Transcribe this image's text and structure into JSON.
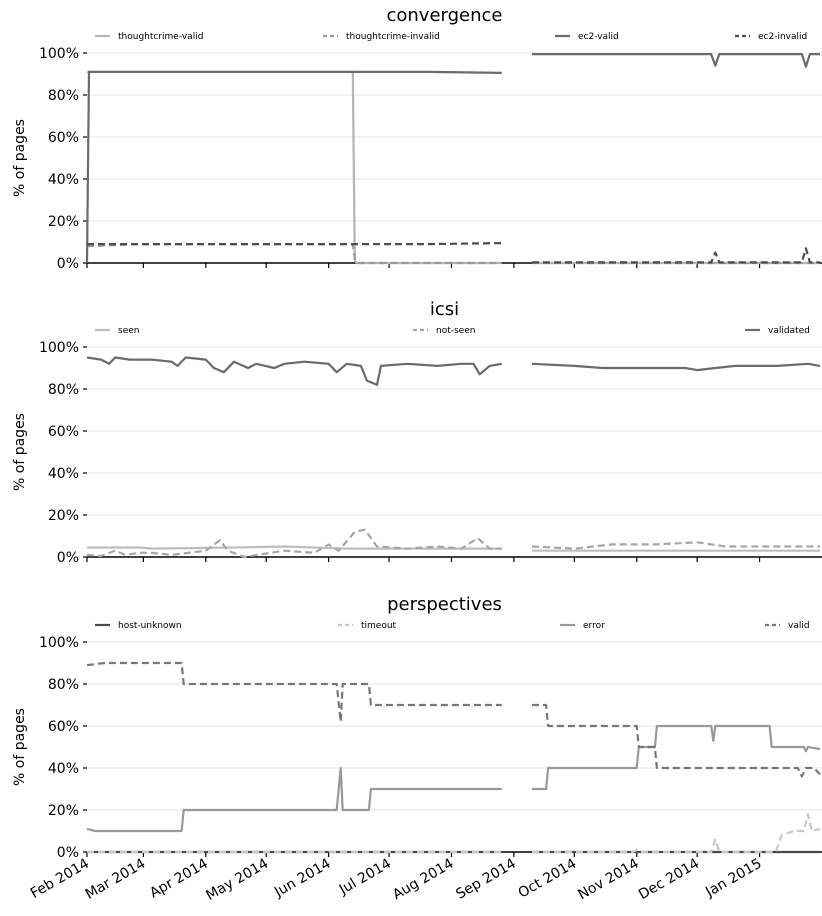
{
  "chart_data": [
    {
      "type": "line",
      "title": "convergence",
      "xlabel": "",
      "ylabel": "% of pages",
      "ylim": [
        0,
        100
      ],
      "y_ticks": [
        "0%",
        "20%",
        "40%",
        "60%",
        "80%",
        "100%"
      ],
      "grid": "horizontal",
      "legend_position": "top",
      "series": [
        {
          "name": "thoughtcrime-valid",
          "color": "#b4b4b4",
          "dash": "solid",
          "points": [
            [
              "2014-02-01",
              91
            ],
            [
              "2014-02-27",
              91
            ],
            [
              "2014-03-05",
              91
            ],
            [
              "2014-04-15",
              91
            ],
            [
              "2014-05-20",
              91
            ],
            [
              "2014-06-13",
              91
            ],
            [
              "2014-06-14",
              1
            ],
            [
              "2014-06-15",
              0
            ],
            [
              "2014-07-20",
              0
            ],
            [
              "2014-08-26",
              0
            ],
            [
              "2014-09-10",
              0
            ],
            [
              "2014-10-30",
              0
            ],
            [
              "2014-12-05",
              0
            ],
            [
              "2015-01-31",
              0
            ]
          ]
        },
        {
          "name": "thoughtcrime-invalid",
          "color": "#9a9a9a",
          "dash": "dashed",
          "points": [
            [
              "2014-02-01",
              8
            ],
            [
              "2014-02-27",
              9
            ],
            [
              "2014-03-05",
              9
            ],
            [
              "2014-04-15",
              9
            ],
            [
              "2014-06-13",
              9
            ],
            [
              "2014-06-14",
              2
            ],
            [
              "2014-06-15",
              0
            ],
            [
              "2014-07-20",
              0
            ],
            [
              "2014-08-26",
              0
            ],
            [
              "2014-09-10",
              0
            ],
            [
              "2014-12-05",
              0
            ],
            [
              "2015-01-31",
              0
            ]
          ]
        },
        {
          "name": "ec2-valid",
          "color": "#6b6b6b",
          "dash": "solid",
          "points": [
            [
              "2014-02-01",
              0
            ],
            [
              "2014-02-02",
              91
            ],
            [
              "2014-02-27",
              91
            ],
            [
              "2014-03-05",
              91
            ],
            [
              "2014-04-15",
              91
            ],
            [
              "2014-05-20",
              91
            ],
            [
              "2014-06-13",
              91
            ],
            [
              "2014-07-20",
              91
            ],
            [
              "2014-08-26",
              90.5
            ],
            [
              "2014-09-10",
              99.5
            ],
            [
              "2014-10-30",
              99.5
            ],
            [
              "2014-12-08",
              99.5
            ],
            [
              "2014-12-10",
              94
            ],
            [
              "2014-12-12",
              99.5
            ],
            [
              "2015-01-22",
              99.5
            ],
            [
              "2015-01-24",
              93.5
            ],
            [
              "2015-01-26",
              99.5
            ],
            [
              "2015-01-31",
              99.5
            ]
          ]
        },
        {
          "name": "ec2-invalid",
          "color": "#4d4d4d",
          "dash": "dashed",
          "points": [
            [
              "2014-02-01",
              9
            ],
            [
              "2014-02-27",
              9
            ],
            [
              "2014-03-05",
              9
            ],
            [
              "2014-04-15",
              9
            ],
            [
              "2014-06-13",
              9
            ],
            [
              "2014-07-20",
              9
            ],
            [
              "2014-08-26",
              9.5
            ],
            [
              "2014-09-10",
              0.3
            ],
            [
              "2014-10-30",
              0.3
            ],
            [
              "2014-12-08",
              0.3
            ],
            [
              "2014-12-10",
              5
            ],
            [
              "2014-12-12",
              0.3
            ],
            [
              "2015-01-22",
              0.3
            ],
            [
              "2015-01-24",
              7
            ],
            [
              "2015-01-26",
              0.3
            ],
            [
              "2015-01-31",
              0.3
            ]
          ]
        }
      ]
    },
    {
      "type": "line",
      "title": "icsi",
      "xlabel": "",
      "ylabel": "% of pages",
      "ylim": [
        0,
        100
      ],
      "y_ticks": [
        "0%",
        "20%",
        "40%",
        "60%",
        "80%",
        "100%"
      ],
      "grid": "horizontal",
      "legend_position": "top",
      "series": [
        {
          "name": "seen",
          "color": "#bebebe",
          "dash": "solid",
          "points": [
            [
              "2014-02-01",
              4.5
            ],
            [
              "2014-02-27",
              4.5
            ],
            [
              "2014-03-05",
              4
            ],
            [
              "2014-04-15",
              4.5
            ],
            [
              "2014-05-10",
              5
            ],
            [
              "2014-06-10",
              4
            ],
            [
              "2014-07-20",
              4
            ],
            [
              "2014-08-26",
              4
            ],
            [
              "2014-09-10",
              3
            ],
            [
              "2014-10-30",
              3
            ],
            [
              "2014-12-05",
              3
            ],
            [
              "2015-01-31",
              3
            ]
          ]
        },
        {
          "name": "not-seen",
          "color": "#a6a6a6",
          "dash": "dashed",
          "points": [
            [
              "2014-02-01",
              1
            ],
            [
              "2014-02-08",
              0.5
            ],
            [
              "2014-02-15",
              3
            ],
            [
              "2014-02-20",
              1
            ],
            [
              "2014-02-27",
              2
            ],
            [
              "2014-03-05",
              2
            ],
            [
              "2014-03-15",
              1
            ],
            [
              "2014-04-01",
              3
            ],
            [
              "2014-04-08",
              8
            ],
            [
              "2014-04-12",
              3
            ],
            [
              "2014-04-20",
              0
            ],
            [
              "2014-05-10",
              3
            ],
            [
              "2014-05-25",
              2
            ],
            [
              "2014-06-01",
              6
            ],
            [
              "2014-06-06",
              3
            ],
            [
              "2014-06-14",
              12
            ],
            [
              "2014-06-19",
              13
            ],
            [
              "2014-06-25",
              5
            ],
            [
              "2014-07-10",
              4
            ],
            [
              "2014-07-25",
              5
            ],
            [
              "2014-08-06",
              4
            ],
            [
              "2014-08-14",
              9
            ],
            [
              "2014-08-20",
              4
            ],
            [
              "2014-08-26",
              4
            ],
            [
              "2014-09-10",
              5
            ],
            [
              "2014-10-01",
              4
            ],
            [
              "2014-10-20",
              6
            ],
            [
              "2014-11-10",
              6
            ],
            [
              "2014-12-01",
              7
            ],
            [
              "2014-12-15",
              5
            ],
            [
              "2015-01-10",
              5
            ],
            [
              "2015-01-31",
              5
            ]
          ]
        },
        {
          "name": "validated",
          "color": "#6b6b6b",
          "dash": "solid",
          "points": [
            [
              "2014-02-01",
              95
            ],
            [
              "2014-02-08",
              94
            ],
            [
              "2014-02-12",
              92
            ],
            [
              "2014-02-15",
              95
            ],
            [
              "2014-02-22",
              94
            ],
            [
              "2014-02-27",
              94
            ],
            [
              "2014-03-05",
              94
            ],
            [
              "2014-03-15",
              93
            ],
            [
              "2014-03-18",
              91
            ],
            [
              "2014-03-22",
              95
            ],
            [
              "2014-04-01",
              94
            ],
            [
              "2014-04-05",
              90
            ],
            [
              "2014-04-10",
              88
            ],
            [
              "2014-04-15",
              93
            ],
            [
              "2014-04-22",
              90
            ],
            [
              "2014-04-26",
              92
            ],
            [
              "2014-05-05",
              90
            ],
            [
              "2014-05-10",
              92
            ],
            [
              "2014-05-20",
              93
            ],
            [
              "2014-06-01",
              92
            ],
            [
              "2014-06-05",
              88
            ],
            [
              "2014-06-10",
              92
            ],
            [
              "2014-06-17",
              91
            ],
            [
              "2014-06-20",
              84
            ],
            [
              "2014-06-25",
              82
            ],
            [
              "2014-06-27",
              91
            ],
            [
              "2014-07-10",
              92
            ],
            [
              "2014-07-25",
              91
            ],
            [
              "2014-08-06",
              92
            ],
            [
              "2014-08-12",
              92
            ],
            [
              "2014-08-15",
              87
            ],
            [
              "2014-08-20",
              91
            ],
            [
              "2014-08-26",
              92
            ],
            [
              "2014-09-10",
              92
            ],
            [
              "2014-10-01",
              91
            ],
            [
              "2014-10-15",
              90
            ],
            [
              "2014-11-10",
              90
            ],
            [
              "2014-11-25",
              90
            ],
            [
              "2014-12-01",
              89
            ],
            [
              "2014-12-10",
              90
            ],
            [
              "2014-12-20",
              91
            ],
            [
              "2015-01-10",
              91
            ],
            [
              "2015-01-25",
              92
            ],
            [
              "2015-01-31",
              91
            ]
          ]
        }
      ]
    },
    {
      "type": "line",
      "title": "perspectives",
      "xlabel": "",
      "ylabel": "% of pages",
      "ylim": [
        0,
        100
      ],
      "y_ticks": [
        "0%",
        "20%",
        "40%",
        "60%",
        "80%",
        "100%"
      ],
      "grid": "horizontal",
      "legend_position": "top",
      "x_ticks": [
        "Feb 2014",
        "Mar 2014",
        "Apr 2014",
        "May 2014",
        "Jun 2014",
        "Jul 2014",
        "Aug 2014",
        "Sep 2014",
        "Oct 2014",
        "Nov 2014",
        "Dec 2014",
        "Jan 2015"
      ],
      "series": [
        {
          "name": "host-unknown",
          "color": "#4a4a4a",
          "dash": "solid",
          "points": [
            [
              "2014-02-01",
              0
            ],
            [
              "2014-02-27",
              0
            ],
            [
              "2014-03-05",
              0
            ],
            [
              "2014-06-10",
              0
            ],
            [
              "2014-08-26",
              0
            ],
            [
              "2014-09-10",
              0
            ],
            [
              "2014-12-10",
              0
            ],
            [
              "2015-01-31",
              0
            ]
          ]
        },
        {
          "name": "timeout",
          "color": "#c8c8c8",
          "dash": "dashed",
          "points": [
            [
              "2014-02-01",
              0
            ],
            [
              "2014-02-27",
              0
            ],
            [
              "2014-03-05",
              0
            ],
            [
              "2014-08-26",
              0
            ],
            [
              "2014-09-10",
              0
            ],
            [
              "2014-10-30",
              0
            ],
            [
              "2014-11-01",
              1
            ],
            [
              "2014-11-03",
              0
            ],
            [
              "2014-12-08",
              0
            ],
            [
              "2014-12-10",
              6
            ],
            [
              "2014-12-12",
              0
            ],
            [
              "2015-01-09",
              0
            ],
            [
              "2015-01-12",
              8
            ],
            [
              "2015-01-18",
              10
            ],
            [
              "2015-01-23",
              10
            ],
            [
              "2015-01-25",
              18
            ],
            [
              "2015-01-27",
              10
            ],
            [
              "2015-01-31",
              11
            ]
          ]
        },
        {
          "name": "error",
          "color": "#999999",
          "dash": "solid",
          "points": [
            [
              "2014-02-01",
              11
            ],
            [
              "2014-02-05",
              10
            ],
            [
              "2014-02-27",
              10
            ],
            [
              "2014-03-05",
              10
            ],
            [
              "2014-03-20",
              10
            ],
            [
              "2014-03-21",
              20
            ],
            [
              "2014-06-05",
              20
            ],
            [
              "2014-06-07",
              40
            ],
            [
              "2014-06-08",
              20
            ],
            [
              "2014-06-21",
              20
            ],
            [
              "2014-06-22",
              30
            ],
            [
              "2014-08-26",
              30
            ],
            [
              "2014-09-10",
              30
            ],
            [
              "2014-09-17",
              30
            ],
            [
              "2014-09-18",
              40
            ],
            [
              "2014-11-01",
              40
            ],
            [
              "2014-11-02",
              50
            ],
            [
              "2014-11-10",
              50
            ],
            [
              "2014-11-11",
              60
            ],
            [
              "2014-12-08",
              60
            ],
            [
              "2014-12-09",
              53
            ],
            [
              "2014-12-10",
              60
            ],
            [
              "2015-01-06",
              60
            ],
            [
              "2015-01-07",
              50
            ],
            [
              "2015-01-23",
              50
            ],
            [
              "2015-01-24",
              48
            ],
            [
              "2015-01-25",
              50
            ],
            [
              "2015-01-31",
              49
            ]
          ]
        },
        {
          "name": "valid",
          "color": "#777777",
          "dash": "dashed",
          "points": [
            [
              "2014-02-01",
              89
            ],
            [
              "2014-02-10",
              90
            ],
            [
              "2014-02-27",
              90
            ],
            [
              "2014-03-05",
              90
            ],
            [
              "2014-03-20",
              90
            ],
            [
              "2014-03-21",
              80
            ],
            [
              "2014-06-05",
              80
            ],
            [
              "2014-06-07",
              62
            ],
            [
              "2014-06-08",
              80
            ],
            [
              "2014-06-21",
              80
            ],
            [
              "2014-06-22",
              70
            ],
            [
              "2014-08-26",
              70
            ],
            [
              "2014-09-10",
              70
            ],
            [
              "2014-09-17",
              70
            ],
            [
              "2014-09-18",
              60
            ],
            [
              "2014-11-01",
              60
            ],
            [
              "2014-11-02",
              50
            ],
            [
              "2014-11-10",
              50
            ],
            [
              "2014-11-11",
              40
            ],
            [
              "2015-01-20",
              40
            ],
            [
              "2015-01-22",
              36
            ],
            [
              "2015-01-24",
              40
            ],
            [
              "2015-01-28",
              40
            ],
            [
              "2015-01-31",
              37
            ]
          ]
        }
      ]
    }
  ]
}
